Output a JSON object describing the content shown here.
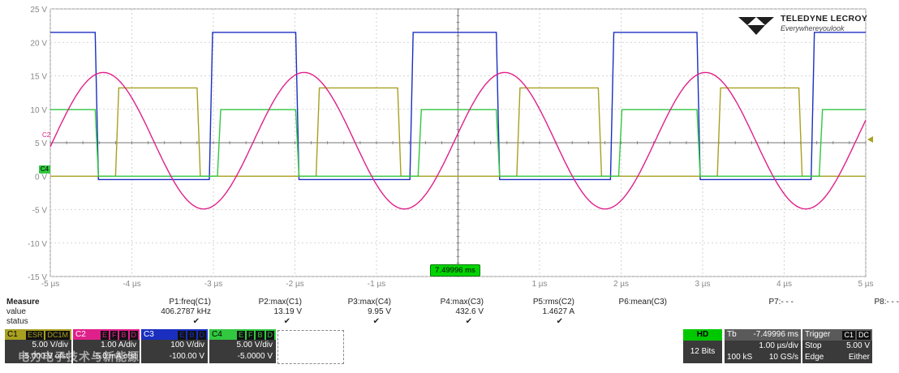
{
  "brand": {
    "name": "TELEDYNE LECROY",
    "tagline": "Everywhereyoulook"
  },
  "colors": {
    "c1": "#a8a021",
    "c2": "#e0208a",
    "c3": "#1a2fc0",
    "c4": "#32c840",
    "grid": "#c8c8c8",
    "axis": "#9a9a9a"
  },
  "y_ticks": [
    "25 V",
    "20 V",
    "15 V",
    "10 V",
    "5 V",
    "0 V",
    "-5 V",
    "-10 V",
    "-15 V"
  ],
  "x_ticks": [
    "-5 µs",
    "-4 µs",
    "-3 µs",
    "-2 µs",
    "-1 µs",
    "",
    "1 µs",
    "2 µs",
    "3 µs",
    "4 µs",
    "5 µs"
  ],
  "trigger_time": "7.49996 ms",
  "markers": {
    "c2": "C2",
    "c4": "C4"
  },
  "chart_data": {
    "type": "line",
    "x_unit": "µs",
    "y_unit": "V",
    "xlim": [
      -5,
      5
    ],
    "ylim": [
      -15,
      25
    ],
    "grid": true,
    "period_us": 2.4615,
    "series": [
      {
        "name": "C3",
        "color": "#1a2fc0",
        "shape": "square",
        "high": 21.5,
        "low": -0.5,
        "rise_us": [
          -3.05,
          -0.59,
          1.87,
          4.33
        ],
        "fall_us": [
          -4.45,
          -1.99,
          0.47,
          2.93
        ]
      },
      {
        "name": "C1",
        "color": "#a8a021",
        "shape": "square",
        "high": 13.19,
        "low": 0.0,
        "rise_us": [
          -4.2,
          -1.74,
          0.72,
          3.18
        ],
        "fall_us": [
          -3.2,
          -0.74,
          1.72,
          4.18
        ]
      },
      {
        "name": "C4",
        "color": "#32c840",
        "shape": "square",
        "high": 9.95,
        "low": 0.0,
        "rise_us": [
          -2.95,
          -0.49,
          1.97,
          4.43
        ],
        "fall_us": [
          -4.45,
          -1.99,
          0.47,
          2.93
        ]
      },
      {
        "name": "C2",
        "color": "#e0208a",
        "shape": "sine",
        "amplitude": 10.2,
        "offset": 5.3,
        "peak_us": [
          -4.35,
          -1.89,
          0.57,
          3.03
        ]
      }
    ]
  },
  "measure": {
    "title": "Measure",
    "row_labels": [
      "value",
      "status"
    ],
    "params": [
      {
        "name": "P1:freq(C1)",
        "value": "406.2787 kHz",
        "ok": true
      },
      {
        "name": "P2:max(C1)",
        "value": "13.19 V",
        "ok": true
      },
      {
        "name": "P3:max(C4)",
        "value": "9.95 V",
        "ok": true
      },
      {
        "name": "P4:max(C3)",
        "value": "432.6 V",
        "ok": true
      },
      {
        "name": "P5:rms(C2)",
        "value": "1.4627 A",
        "ok": true
      },
      {
        "name": "P6:mean(C3)",
        "value": "",
        "ok": false
      },
      {
        "name": "P7:- - -",
        "value": "",
        "ok": false
      },
      {
        "name": "P8:- - -",
        "value": "",
        "ok": false
      }
    ]
  },
  "channels": [
    {
      "id": "C1",
      "tags": [
        "ESR",
        "DC1M"
      ],
      "scale": "5.00 V/div",
      "offset": "-5.000 V ofst"
    },
    {
      "id": "C2",
      "tags": [
        "E",
        "F",
        "B",
        "D"
      ],
      "scale": "1.00 A/div",
      "offset": "-5.0 mA ofst"
    },
    {
      "id": "C3",
      "tags": [
        "E",
        "B",
        "D"
      ],
      "scale": "100 V/div",
      "offset": "-100.00 V"
    },
    {
      "id": "C4",
      "tags": [
        "E",
        "F",
        "B",
        "D"
      ],
      "scale": "5.00 V/div",
      "offset": "-5.0000 V"
    }
  ],
  "hd": {
    "label": "HD",
    "bits": "12 Bits"
  },
  "timebase": {
    "label": "Tb",
    "delay": "-7.49996 ms",
    "scale": "1.00 µs/div",
    "samples": "100 kS",
    "rate": "10 GS/s"
  },
  "trigger": {
    "label": "Trigger",
    "tags": [
      "C1",
      "DC"
    ],
    "mode": "Stop",
    "level": "5.00 V",
    "type": "Edge",
    "slope": "Either"
  },
  "watermark": "电力电子技术与新能源"
}
